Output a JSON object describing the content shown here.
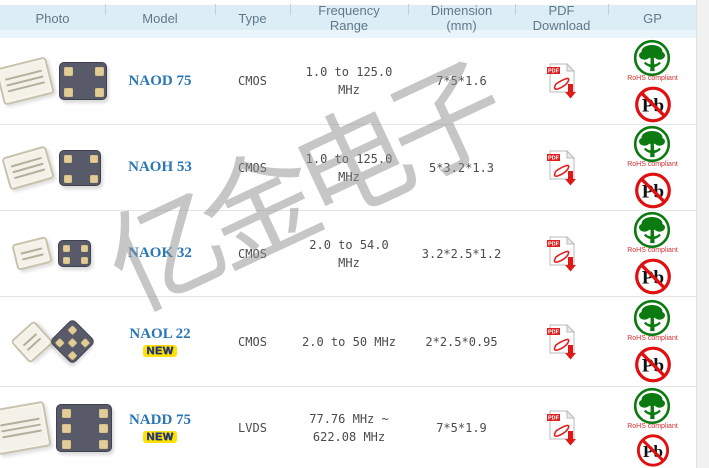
{
  "watermark": "亿金电子",
  "header": {
    "columns": [
      "Photo",
      "Model",
      "Type",
      "Frequency Range",
      "Dimension (mm)",
      "PDF Download",
      "GP"
    ]
  },
  "labels": {
    "new_badge": "NEW",
    "rohs": "RoHS compliant",
    "pb": "Pb",
    "pdf": "PDF"
  },
  "rows": [
    {
      "model": "NAOD 75",
      "is_new": false,
      "type": "CMOS",
      "frequency": "1.0 to 125.0 MHz",
      "dimension": "7*5*1.6",
      "photo_desc": "7x5 SMD oscillator, top and bottom view with 4 pads"
    },
    {
      "model": "NAOH 53",
      "is_new": false,
      "type": "CMOS",
      "frequency": "1.0 to 125.0 MHz",
      "dimension": "5*3.2*1.3",
      "photo_desc": "5x3.2 SMD oscillator, top and bottom view with 4 pads"
    },
    {
      "model": "NAOK 32",
      "is_new": false,
      "type": "CMOS",
      "frequency": "2.0 to 54.0 MHz",
      "dimension": "3.2*2.5*1.2",
      "photo_desc": "3.2x2.5 SMD oscillator, top and bottom view with 4 pads"
    },
    {
      "model": "NAOL 22",
      "is_new": true,
      "type": "CMOS",
      "frequency": "2.0 to 50 MHz",
      "dimension": "2*2.5*0.95",
      "photo_desc": "2x2.5 SMD oscillator, tilted diamond top and bottom view"
    },
    {
      "model": "NADD 75",
      "is_new": true,
      "type": "LVDS",
      "frequency": "77.76 MHz ~ 622.08 MHz",
      "dimension": "7*5*1.9",
      "photo_desc": "7x5 SMD oscillator, top and bottom view with 6 pads"
    }
  ],
  "colors": {
    "header_bg": "#dcedf6",
    "header_text": "#60798a",
    "link_blue": "#2a77b5",
    "new_badge_bg": "#ffe10a",
    "new_badge_text": "#1c2f8c",
    "rohs_green": "#0c7a10",
    "pb_red": "#e01010",
    "pdf_red": "#e02020",
    "row_text": "#4c4c4c",
    "separator": "#e4e4e4"
  }
}
